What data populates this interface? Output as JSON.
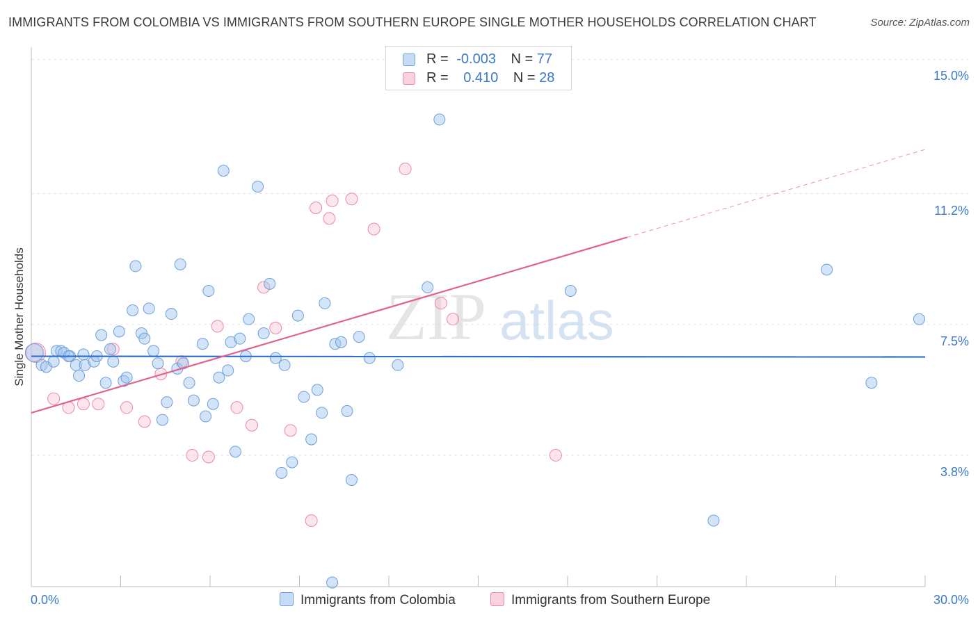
{
  "title": "IMMIGRANTS FROM COLOMBIA VS IMMIGRANTS FROM SOUTHERN EUROPE SINGLE MOTHER HOUSEHOLDS CORRELATION CHART",
  "source": "Source: ZipAtlas.com",
  "legend": {
    "rows": [
      {
        "r_label": "R =",
        "r_value": "-0.003",
        "n_label": "N =",
        "n_value": "77"
      },
      {
        "r_label": "R =",
        "r_value": "0.410",
        "n_label": "N =",
        "n_value": "28"
      }
    ]
  },
  "watermark": {
    "zip": "ZIP",
    "atlas": "atlas"
  },
  "colors": {
    "colombia_fill": "rgba(160,196,240,0.45)",
    "colombia_stroke": "#6a9fd8",
    "colombia_line": "#2f6fcc",
    "seurope_fill": "rgba(246,180,200,0.35)",
    "seurope_stroke": "#e88aa8",
    "seurope_line": "#e0628e",
    "grid": "#e3e3e3",
    "axis_text": "#3b78c8"
  },
  "chart_data": {
    "type": "scatter",
    "title": "IMMIGRANTS FROM COLOMBIA VS IMMIGRANTS FROM SOUTHERN EUROPE SINGLE MOTHER HOUSEHOLDS CORRELATION CHART",
    "xlabel": "",
    "ylabel": "Single Mother Households",
    "xlim": [
      0,
      30
    ],
    "ylim": [
      0.2,
      15.5
    ],
    "x_tick_labels": [
      "0.0%",
      "30.0%"
    ],
    "y_ticks": [
      3.8,
      7.5,
      11.2,
      15.0
    ],
    "y_tick_labels": [
      "3.8%",
      "7.5%",
      "11.2%",
      "15.0%"
    ],
    "grid": true,
    "legend_position": "top-center",
    "series": [
      {
        "name": "Immigrants from Colombia",
        "r": -0.003,
        "n": 77,
        "trend": {
          "x0": 0,
          "y0": 6.6,
          "x1": 30,
          "y1": 6.58,
          "solid_to": 30
        },
        "points": [
          [
            0.1,
            6.7
          ],
          [
            0.35,
            6.35
          ],
          [
            0.5,
            6.3
          ],
          [
            0.75,
            6.45
          ],
          [
            0.85,
            6.75
          ],
          [
            1.0,
            6.75
          ],
          [
            1.1,
            6.7
          ],
          [
            1.3,
            6.6
          ],
          [
            1.5,
            6.35
          ],
          [
            1.6,
            6.05
          ],
          [
            1.75,
            6.65
          ],
          [
            1.8,
            6.35
          ],
          [
            2.1,
            6.45
          ],
          [
            2.2,
            6.6
          ],
          [
            2.35,
            7.2
          ],
          [
            2.5,
            5.85
          ],
          [
            2.65,
            6.8
          ],
          [
            2.75,
            6.45
          ],
          [
            2.95,
            7.3
          ],
          [
            3.1,
            5.9
          ],
          [
            3.2,
            6.0
          ],
          [
            3.4,
            7.9
          ],
          [
            3.5,
            9.15
          ],
          [
            3.7,
            7.25
          ],
          [
            3.8,
            7.1
          ],
          [
            3.95,
            7.95
          ],
          [
            4.1,
            6.75
          ],
          [
            4.25,
            6.4
          ],
          [
            4.4,
            4.8
          ],
          [
            4.55,
            5.3
          ],
          [
            4.7,
            7.8
          ],
          [
            4.9,
            6.25
          ],
          [
            5.0,
            9.2
          ],
          [
            5.1,
            6.4
          ],
          [
            5.3,
            5.85
          ],
          [
            5.45,
            5.35
          ],
          [
            5.75,
            6.95
          ],
          [
            5.85,
            4.9
          ],
          [
            5.95,
            8.45
          ],
          [
            6.1,
            5.25
          ],
          [
            6.3,
            6.0
          ],
          [
            6.6,
            6.2
          ],
          [
            6.45,
            11.85
          ],
          [
            6.7,
            7.0
          ],
          [
            6.85,
            3.9
          ],
          [
            7.0,
            7.1
          ],
          [
            7.2,
            6.6
          ],
          [
            7.3,
            7.65
          ],
          [
            7.6,
            11.4
          ],
          [
            7.8,
            7.25
          ],
          [
            8.0,
            8.65
          ],
          [
            8.2,
            6.55
          ],
          [
            8.4,
            3.3
          ],
          [
            8.5,
            6.35
          ],
          [
            8.75,
            3.6
          ],
          [
            8.95,
            7.75
          ],
          [
            9.15,
            5.45
          ],
          [
            9.4,
            4.25
          ],
          [
            9.6,
            5.65
          ],
          [
            9.75,
            5.0
          ],
          [
            9.85,
            8.1
          ],
          [
            10.2,
            6.95
          ],
          [
            10.4,
            7.0
          ],
          [
            10.6,
            5.05
          ],
          [
            10.75,
            3.1
          ],
          [
            11.0,
            7.15
          ],
          [
            11.35,
            6.55
          ],
          [
            12.3,
            6.35
          ],
          [
            13.3,
            8.55
          ],
          [
            13.7,
            13.3
          ],
          [
            18.1,
            8.45
          ],
          [
            22.9,
            1.95
          ],
          [
            26.7,
            9.05
          ],
          [
            28.2,
            5.85
          ],
          [
            29.8,
            7.65
          ],
          [
            10.1,
            0.2
          ],
          [
            1.25,
            6.6
          ]
        ]
      },
      {
        "name": "Immigrants from Southern Europe",
        "r": 0.41,
        "n": 28,
        "trend": {
          "x0": 0,
          "y0": 5.0,
          "x1": 30,
          "y1": 12.45,
          "solid_to": 20.0
        },
        "points": [
          [
            0.15,
            6.7
          ],
          [
            0.75,
            5.4
          ],
          [
            1.25,
            5.15
          ],
          [
            1.75,
            5.25
          ],
          [
            2.25,
            5.25
          ],
          [
            2.75,
            6.8
          ],
          [
            3.2,
            5.15
          ],
          [
            3.8,
            4.75
          ],
          [
            4.35,
            6.1
          ],
          [
            5.05,
            6.45
          ],
          [
            5.4,
            3.8
          ],
          [
            5.95,
            3.75
          ],
          [
            6.25,
            7.45
          ],
          [
            6.9,
            5.15
          ],
          [
            7.4,
            4.65
          ],
          [
            7.8,
            8.55
          ],
          [
            8.2,
            7.4
          ],
          [
            8.7,
            4.5
          ],
          [
            9.4,
            1.95
          ],
          [
            9.55,
            10.8
          ],
          [
            10.0,
            10.5
          ],
          [
            10.1,
            11.0
          ],
          [
            10.75,
            11.05
          ],
          [
            11.5,
            10.2
          ],
          [
            12.55,
            11.9
          ],
          [
            13.75,
            8.1
          ],
          [
            14.15,
            7.65
          ],
          [
            17.6,
            3.8
          ]
        ]
      }
    ]
  },
  "bottom_legend": {
    "colombia_label": "Immigrants from Colombia",
    "seurope_label": "Immigrants from Southern Europe"
  }
}
